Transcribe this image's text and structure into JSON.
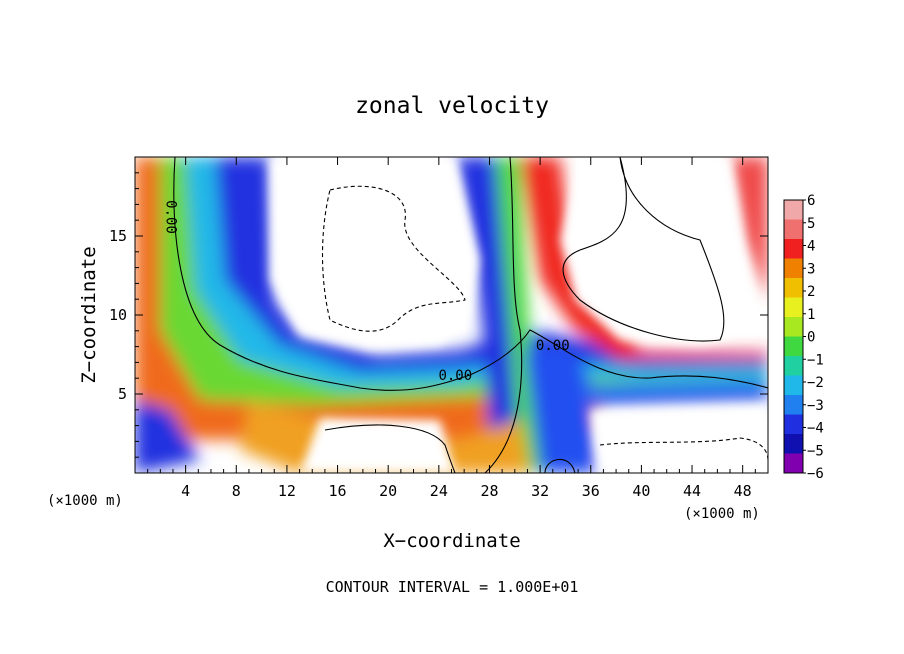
{
  "chart_data": {
    "type": "heatmap",
    "title": "zonal velocity",
    "xlabel": "X−coordinate",
    "ylabel": "Z−coordinate",
    "x_unit_left": "(×1000 m)",
    "x_unit_right": "(×1000 m)",
    "footer": "CONTOUR INTERVAL = 1.000E+01",
    "xlim": [
      0,
      50
    ],
    "ylim": [
      0,
      20
    ],
    "x_ticks": [
      4,
      8,
      12,
      16,
      20,
      24,
      28,
      32,
      36,
      40,
      44,
      48
    ],
    "y_ticks": [
      5,
      10,
      15
    ],
    "colorbar": {
      "min": -6,
      "max": 6,
      "ticks": [
        "6",
        "5",
        "4",
        "3",
        "2",
        "1",
        "0",
        "−1",
        "−2",
        "−3",
        "−4",
        "−5",
        "−6"
      ],
      "colors": [
        "#f0a8a8",
        "#f07070",
        "#f02020",
        "#f08000",
        "#f0c000",
        "#e8f020",
        "#a8e820",
        "#40d840",
        "#20d0a0",
        "#20b8e8",
        "#2080f0",
        "#2030e0",
        "#1010b0",
        "#8000b0"
      ]
    },
    "contour_labels": [
      {
        "text": "0.00",
        "x": 2.5,
        "y": 16.2,
        "rotation": 90
      },
      {
        "text": "0.00",
        "x": 25.3,
        "y": 5.9,
        "rotation": 0
      },
      {
        "text": "0.00",
        "x": 33.0,
        "y": 7.8,
        "rotation": 0
      }
    ]
  }
}
